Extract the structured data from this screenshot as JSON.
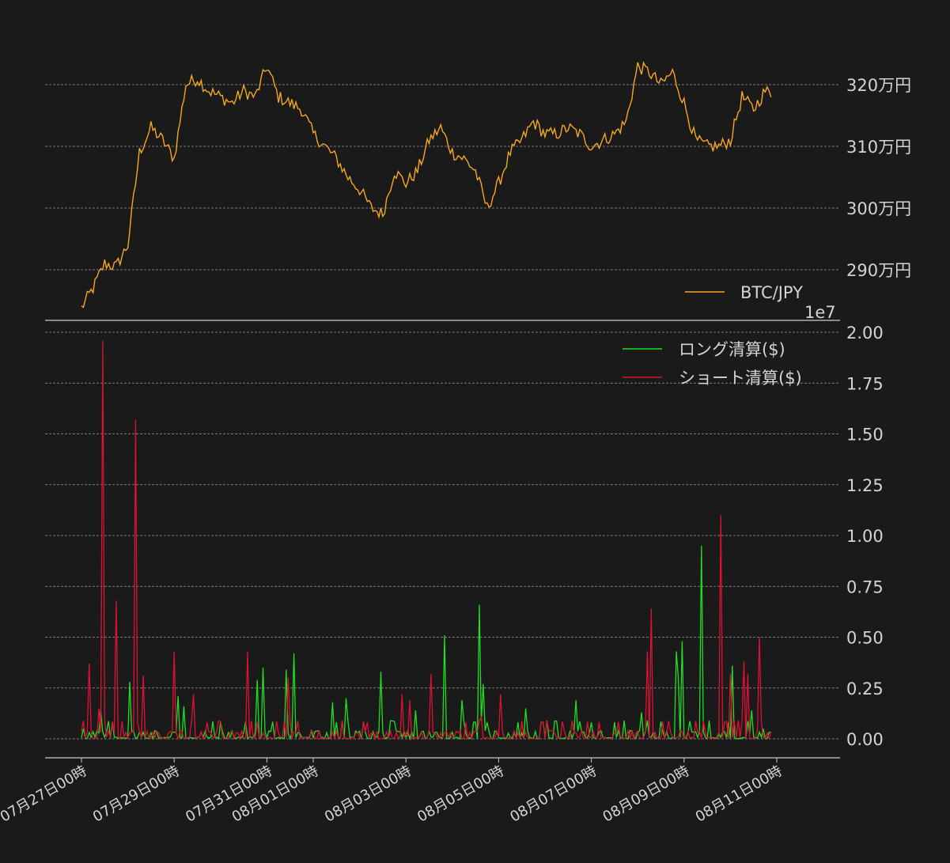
{
  "colors": {
    "background": "#1a1a1a",
    "btc": "#f5a623",
    "long": "#22dd22",
    "short": "#dd1133",
    "text": "#d4d4d4",
    "axis": "#cccccc"
  },
  "chart_data": [
    {
      "type": "line",
      "title": "",
      "ylabel": "",
      "ylim": [
        2838000,
        3270000
      ],
      "yticks": [
        2900000,
        3000000,
        3100000,
        3200000
      ],
      "ytick_labels": [
        "290万円",
        "300万円",
        "310万円",
        "320万円"
      ],
      "grid": true,
      "legend": "bottom-right",
      "series": [
        {
          "name": "BTC/JPY",
          "x": [
            "2021-07-27T00:00",
            "2021-07-27T06:00",
            "2021-07-27T12:00",
            "2021-07-27T18:00",
            "2021-07-28T00:00",
            "2021-07-28T06:00",
            "2021-07-28T12:00",
            "2021-07-28T18:00",
            "2021-07-29T00:00",
            "2021-07-29T06:00",
            "2021-07-29T12:00",
            "2021-07-29T18:00",
            "2021-07-30T00:00",
            "2021-07-30T06:00",
            "2021-07-30T12:00",
            "2021-07-30T18:00",
            "2021-07-31T00:00",
            "2021-07-31T06:00",
            "2021-07-31T12:00",
            "2021-07-31T18:00",
            "2021-08-01T00:00",
            "2021-08-01T06:00",
            "2021-08-01T12:00",
            "2021-08-01T18:00",
            "2021-08-02T00:00",
            "2021-08-02T06:00",
            "2021-08-02T12:00",
            "2021-08-02T18:00",
            "2021-08-03T00:00",
            "2021-08-03T06:00",
            "2021-08-03T12:00",
            "2021-08-03T18:00",
            "2021-08-04T00:00",
            "2021-08-04T06:00",
            "2021-08-04T12:00",
            "2021-08-04T18:00",
            "2021-08-05T00:00",
            "2021-08-05T06:00",
            "2021-08-05T12:00",
            "2021-08-05T18:00",
            "2021-08-06T00:00",
            "2021-08-06T06:00",
            "2021-08-06T12:00",
            "2021-08-06T18:00",
            "2021-08-07T00:00",
            "2021-08-07T06:00",
            "2021-08-07T12:00",
            "2021-08-07T18:00",
            "2021-08-08T00:00",
            "2021-08-08T06:00",
            "2021-08-08T12:00",
            "2021-08-08T18:00",
            "2021-08-09T00:00",
            "2021-08-09T06:00",
            "2021-08-09T12:00",
            "2021-08-09T18:00",
            "2021-08-10T00:00",
            "2021-08-10T06:00",
            "2021-08-10T12:00",
            "2021-08-10T18:00",
            "2021-08-10T21:00"
          ],
          "values": [
            2838000,
            2870000,
            2910000,
            2905000,
            2940000,
            3090000,
            3130000,
            3110000,
            3080000,
            3200000,
            3210000,
            3190000,
            3180000,
            3170000,
            3190000,
            3180000,
            3230000,
            3180000,
            3170000,
            3160000,
            3120000,
            3100000,
            3080000,
            3050000,
            3030000,
            3000000,
            2990000,
            3060000,
            3040000,
            3060000,
            3110000,
            3130000,
            3090000,
            3080000,
            3060000,
            3000000,
            3040000,
            3090000,
            3110000,
            3140000,
            3120000,
            3120000,
            3130000,
            3120000,
            3100000,
            3110000,
            3120000,
            3140000,
            3230000,
            3220000,
            3200000,
            3220000,
            3170000,
            3110000,
            3100000,
            3100000,
            3110000,
            3180000,
            3160000,
            3190000,
            3185000
          ],
          "color": "#f5a623"
        }
      ]
    },
    {
      "type": "line",
      "title": "",
      "ylabel": "",
      "ylim": [
        -200000,
        20000000
      ],
      "yticks": [
        0,
        2500000,
        5000000,
        7500000,
        10000000,
        12500000,
        15000000,
        17500000,
        20000000
      ],
      "ytick_labels": [
        "0.00",
        "0.25",
        "0.50",
        "0.75",
        "1.00",
        "1.25",
        "1.50",
        "1.75",
        "2.00"
      ],
      "offset_text": "1e7",
      "grid": true,
      "legend": "top-right",
      "x_start": "2021-07-27T00:00",
      "x_tick_labels": [
        "07月27日00時",
        "07月29日00時",
        "07月31日00時",
        "08月01日00時",
        "08月03日00時",
        "08月05日00時",
        "08月07日00時",
        "08月09日00時",
        "08月11日00時"
      ],
      "x_ticks": [
        "2021-07-27T00:00",
        "2021-07-29T00:00",
        "2021-07-31T00:00",
        "2021-08-01T00:00",
        "2021-08-03T00:00",
        "2021-08-05T00:00",
        "2021-08-07T00:00",
        "2021-08-09T00:00",
        "2021-08-11T00:00"
      ],
      "series": [
        {
          "name": "ロング清算($)",
          "color": "#22dd22",
          "peaks": [
            [
              "2021-07-27T01:00",
              500000
            ],
            [
              "2021-07-27T10:00",
              1400000
            ],
            [
              "2021-07-28T01:00",
              2800000
            ],
            [
              "2021-07-29T02:00",
              2100000
            ],
            [
              "2021-07-29T05:00",
              1600000
            ],
            [
              "2021-07-30T19:00",
              2900000
            ],
            [
              "2021-07-30T22:00",
              3500000
            ],
            [
              "2021-07-31T10:00",
              3400000
            ],
            [
              "2021-07-31T14:00",
              4200000
            ],
            [
              "2021-08-01T10:00",
              1800000
            ],
            [
              "2021-08-01T17:00",
              2000000
            ],
            [
              "2021-08-02T11:00",
              3300000
            ],
            [
              "2021-08-03T05:00",
              1400000
            ],
            [
              "2021-08-03T20:00",
              5100000
            ],
            [
              "2021-08-04T05:00",
              1900000
            ],
            [
              "2021-08-04T14:00",
              6600000
            ],
            [
              "2021-08-04T16:00",
              2700000
            ],
            [
              "2021-08-05T14:00",
              1500000
            ],
            [
              "2021-08-06T16:00",
              1900000
            ],
            [
              "2021-08-08T02:00",
              1300000
            ],
            [
              "2021-08-08T20:00",
              4300000
            ],
            [
              "2021-08-08T21:00",
              3000000
            ],
            [
              "2021-08-08T23:00",
              4800000
            ],
            [
              "2021-08-09T09:00",
              9500000
            ],
            [
              "2021-08-10T01:00",
              3600000
            ],
            [
              "2021-08-10T11:00",
              1400000
            ],
            [
              "2021-08-10T17:00",
              500000
            ]
          ],
          "values": []
        },
        {
          "name": "ショート清算($)",
          "color": "#dd1133",
          "peaks": [
            [
              "2021-07-27T04:00",
              3700000
            ],
            [
              "2021-07-27T09:00",
              1500000
            ],
            [
              "2021-07-27T11:00",
              19600000
            ],
            [
              "2021-07-27T18:00",
              6800000
            ],
            [
              "2021-07-28T04:00",
              15700000
            ],
            [
              "2021-07-28T08:00",
              3100000
            ],
            [
              "2021-07-29T00:00",
              4300000
            ],
            [
              "2021-07-29T10:00",
              2200000
            ],
            [
              "2021-07-30T14:00",
              4300000
            ],
            [
              "2021-07-31T11:00",
              3000000
            ],
            [
              "2021-08-02T22:00",
              2200000
            ],
            [
              "2021-08-03T02:00",
              1900000
            ],
            [
              "2021-08-03T13:00",
              3200000
            ],
            [
              "2021-08-04T15:00",
              1100000
            ],
            [
              "2021-08-05T01:00",
              2200000
            ],
            [
              "2021-08-08T05:00",
              4300000
            ],
            [
              "2021-08-08T07:00",
              6400000
            ],
            [
              "2021-08-09T19:00",
              11000000
            ],
            [
              "2021-08-10T00:00",
              3200000
            ],
            [
              "2021-08-10T07:00",
              3800000
            ],
            [
              "2021-08-10T09:00",
              3200000
            ],
            [
              "2021-08-10T15:00",
              5000000
            ]
          ],
          "values": []
        }
      ]
    }
  ]
}
